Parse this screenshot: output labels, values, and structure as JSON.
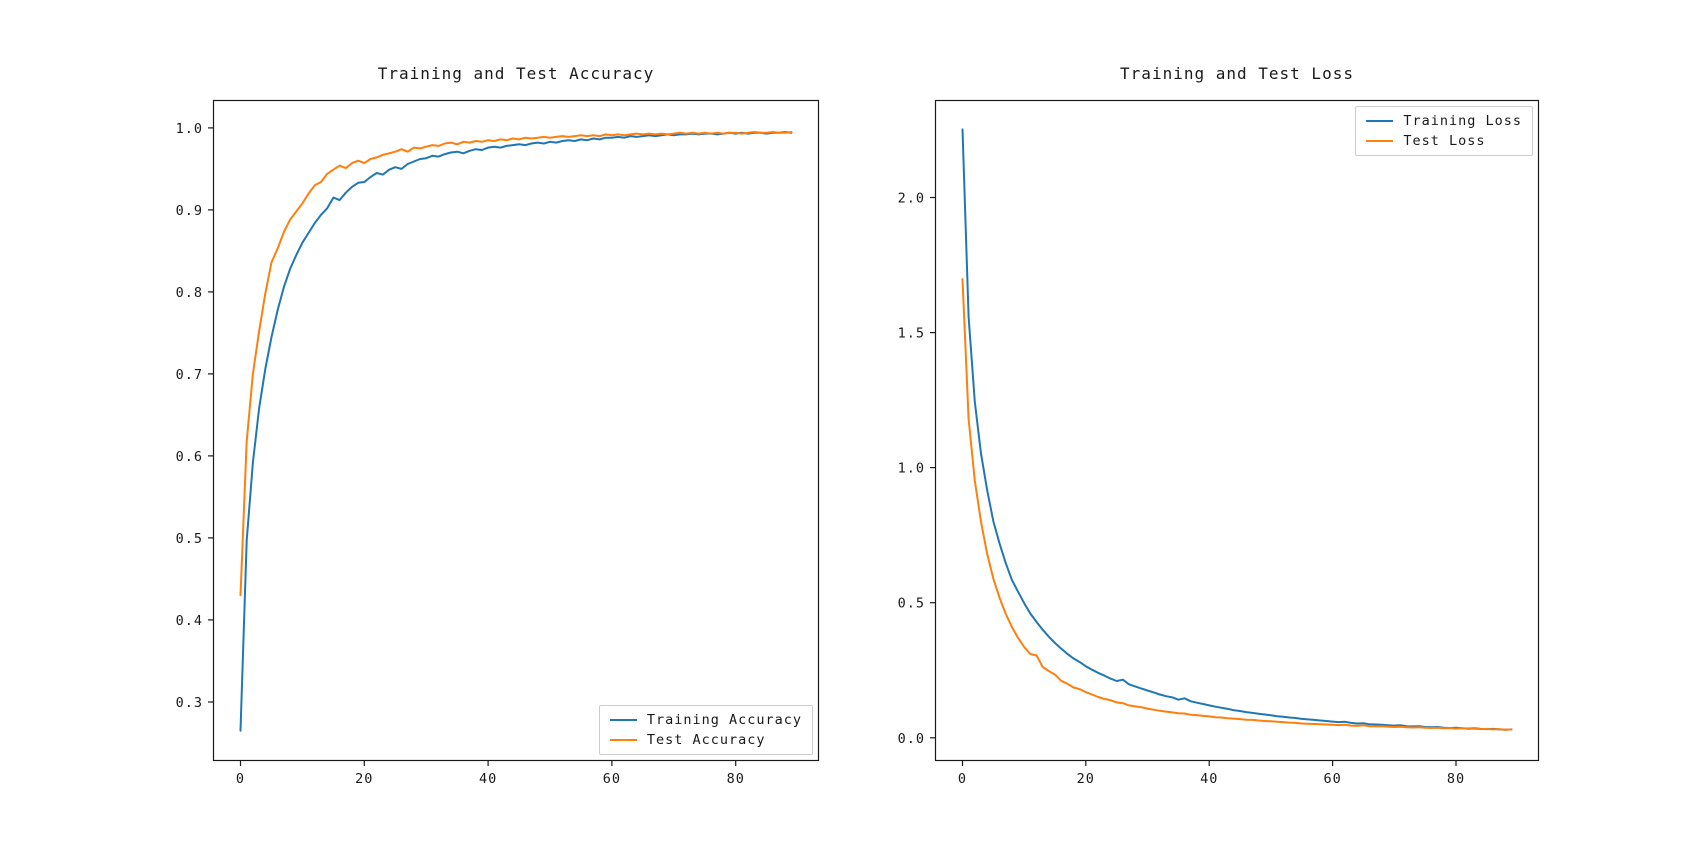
{
  "figure": {
    "background": "#ffffff"
  },
  "chart_data": [
    {
      "type": "line",
      "title": "Training and Test Accuracy",
      "xlabel": "",
      "ylabel": "",
      "grid": false,
      "legend_position": "lower right",
      "xlim": [
        -4.45,
        93.45
      ],
      "ylim": [
        0.228,
        1.034
      ],
      "xticks": [
        0,
        20,
        40,
        60,
        80
      ],
      "xtick_labels": [
        "0",
        "20",
        "40",
        "60",
        "80"
      ],
      "yticks": [
        0.3,
        0.4,
        0.5,
        0.6,
        0.7,
        0.8,
        0.9,
        1.0
      ],
      "ytick_labels": [
        "0.3",
        "0.4",
        "0.5",
        "0.6",
        "0.7",
        "0.8",
        "0.9",
        "1.0"
      ],
      "x_start": 0,
      "x_step": 1,
      "series": [
        {
          "name": "Training Accuracy",
          "color": "#1f77b4",
          "values": [
            0.265,
            0.497,
            0.592,
            0.658,
            0.706,
            0.745,
            0.778,
            0.806,
            0.828,
            0.845,
            0.86,
            0.872,
            0.884,
            0.894,
            0.902,
            0.915,
            0.912,
            0.921,
            0.928,
            0.933,
            0.934,
            0.94,
            0.945,
            0.943,
            0.949,
            0.952,
            0.95,
            0.956,
            0.959,
            0.962,
            0.963,
            0.966,
            0.965,
            0.968,
            0.97,
            0.971,
            0.969,
            0.972,
            0.974,
            0.973,
            0.976,
            0.977,
            0.976,
            0.978,
            0.979,
            0.98,
            0.979,
            0.981,
            0.982,
            0.981,
            0.983,
            0.982,
            0.984,
            0.985,
            0.984,
            0.986,
            0.985,
            0.987,
            0.986,
            0.988,
            0.988,
            0.989,
            0.988,
            0.99,
            0.989,
            0.99,
            0.991,
            0.99,
            0.991,
            0.992,
            0.991,
            0.992,
            0.992,
            0.993,
            0.992,
            0.993,
            0.993,
            0.992,
            0.993,
            0.994,
            0.993,
            0.994,
            0.993,
            0.994,
            0.994,
            0.993,
            0.994,
            0.994,
            0.995,
            0.994
          ]
        },
        {
          "name": "Test Accuracy",
          "color": "#ff7f0e",
          "values": [
            0.43,
            0.618,
            0.7,
            0.752,
            0.798,
            0.836,
            0.853,
            0.873,
            0.888,
            0.898,
            0.908,
            0.92,
            0.93,
            0.934,
            0.944,
            0.949,
            0.954,
            0.951,
            0.957,
            0.96,
            0.957,
            0.962,
            0.964,
            0.967,
            0.969,
            0.971,
            0.974,
            0.971,
            0.976,
            0.975,
            0.977,
            0.979,
            0.978,
            0.981,
            0.982,
            0.98,
            0.983,
            0.982,
            0.984,
            0.983,
            0.985,
            0.984,
            0.986,
            0.985,
            0.987,
            0.986,
            0.988,
            0.987,
            0.988,
            0.989,
            0.988,
            0.989,
            0.99,
            0.989,
            0.99,
            0.991,
            0.99,
            0.991,
            0.99,
            0.992,
            0.991,
            0.992,
            0.991,
            0.992,
            0.993,
            0.992,
            0.993,
            0.992,
            0.993,
            0.992,
            0.993,
            0.994,
            0.993,
            0.994,
            0.993,
            0.994,
            0.993,
            0.994,
            0.993,
            0.994,
            0.994,
            0.993,
            0.994,
            0.995,
            0.994,
            0.994,
            0.995,
            0.994,
            0.994,
            0.995
          ]
        }
      ]
    },
    {
      "type": "line",
      "title": "Training and Test Loss",
      "xlabel": "",
      "ylabel": "",
      "grid": false,
      "legend_position": "upper right",
      "xlim": [
        -4.45,
        93.45
      ],
      "ylim": [
        -0.086,
        2.361
      ],
      "xticks": [
        0,
        20,
        40,
        60,
        80
      ],
      "xtick_labels": [
        "0",
        "20",
        "40",
        "60",
        "80"
      ],
      "yticks": [
        0.0,
        0.5,
        1.0,
        1.5,
        2.0
      ],
      "ytick_labels": [
        "0.0",
        "0.5",
        "1.0",
        "1.5",
        "2.0"
      ],
      "x_start": 0,
      "x_step": 1,
      "series": [
        {
          "name": "Training Loss",
          "color": "#1f77b4",
          "values": [
            2.252,
            1.558,
            1.244,
            1.052,
            0.918,
            0.802,
            0.72,
            0.648,
            0.585,
            0.541,
            0.498,
            0.46,
            0.429,
            0.4,
            0.374,
            0.351,
            0.33,
            0.311,
            0.294,
            0.28,
            0.265,
            0.252,
            0.24,
            0.23,
            0.219,
            0.21,
            0.215,
            0.198,
            0.19,
            0.182,
            0.175,
            0.168,
            0.16,
            0.154,
            0.15,
            0.141,
            0.146,
            0.135,
            0.13,
            0.125,
            0.12,
            0.115,
            0.111,
            0.107,
            0.102,
            0.099,
            0.095,
            0.092,
            0.089,
            0.086,
            0.083,
            0.08,
            0.078,
            0.075,
            0.073,
            0.07,
            0.068,
            0.066,
            0.064,
            0.062,
            0.06,
            0.058,
            0.059,
            0.055,
            0.053,
            0.054,
            0.05,
            0.049,
            0.048,
            0.046,
            0.045,
            0.046,
            0.043,
            0.042,
            0.043,
            0.04,
            0.039,
            0.04,
            0.037,
            0.036,
            0.037,
            0.035,
            0.034,
            0.035,
            0.033,
            0.032,
            0.033,
            0.031,
            0.03,
            0.031
          ]
        },
        {
          "name": "Test Loss",
          "color": "#ff7f0e",
          "values": [
            1.698,
            1.18,
            0.952,
            0.8,
            0.682,
            0.59,
            0.519,
            0.46,
            0.411,
            0.37,
            0.336,
            0.31,
            0.305,
            0.262,
            0.247,
            0.234,
            0.211,
            0.2,
            0.186,
            0.18,
            0.169,
            0.16,
            0.151,
            0.144,
            0.139,
            0.131,
            0.128,
            0.12,
            0.116,
            0.113,
            0.108,
            0.104,
            0.1,
            0.097,
            0.094,
            0.091,
            0.09,
            0.085,
            0.084,
            0.081,
            0.079,
            0.076,
            0.075,
            0.072,
            0.071,
            0.069,
            0.067,
            0.066,
            0.064,
            0.062,
            0.061,
            0.059,
            0.058,
            0.056,
            0.055,
            0.053,
            0.052,
            0.051,
            0.05,
            0.049,
            0.048,
            0.047,
            0.048,
            0.045,
            0.044,
            0.046,
            0.043,
            0.042,
            0.043,
            0.041,
            0.04,
            0.041,
            0.039,
            0.038,
            0.039,
            0.037,
            0.036,
            0.037,
            0.035,
            0.036,
            0.034,
            0.035,
            0.033,
            0.034,
            0.032,
            0.033,
            0.031,
            0.032,
            0.03,
            0.031
          ]
        }
      ]
    }
  ]
}
